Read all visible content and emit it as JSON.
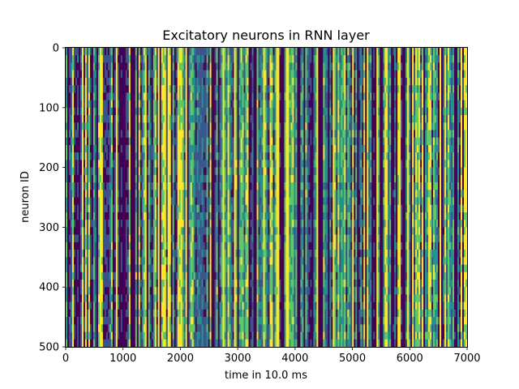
{
  "chart_data": {
    "type": "heatmap",
    "title": "Excitatory neurons in RNN layer",
    "xlabel": "time in 10.0 ms",
    "ylabel": "neuron ID",
    "xlim": [
      0,
      7000
    ],
    "ylim": [
      500,
      0
    ],
    "y_inverted": true,
    "x_ticks": [
      0,
      1000,
      2000,
      3000,
      4000,
      5000,
      6000,
      7000
    ],
    "y_ticks": [
      0,
      100,
      200,
      300,
      400,
      500
    ],
    "colormap": "viridis",
    "colormap_colors": [
      "#440154",
      "#3b528b",
      "#21918c",
      "#5ec962",
      "#fde725"
    ],
    "pattern": "vertical bands: population activity varies strongly over time and is nearly uniform across neurons; dark (silent) stripes at roughly 550, 1020, 1150, 2570, 3200, 3300, 3780, 4070, 4300, 4460, 5400, 5500, 5900, 6560, 6800",
    "grid": false,
    "legend": "none"
  }
}
